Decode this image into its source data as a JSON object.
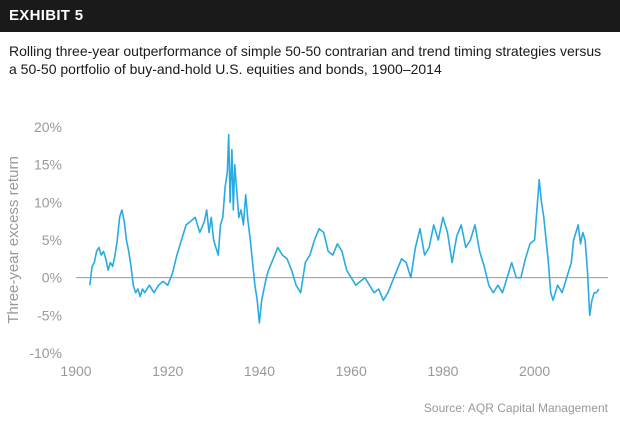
{
  "header": {
    "label": "EXHIBIT 5"
  },
  "subtitle": "Rolling three-year outperformance of simple 50-50 contrarian and trend timing strategies versus a 50-50 portfolio of buy-and-hold U.S. equities and bonds, 1900–2014",
  "source": "Source: AQR Capital Management",
  "colors": {
    "series": "#29abe2",
    "zero_line": "#999999",
    "tick_text": "#999999",
    "header_bg": "#1a1a1a"
  },
  "chart_data": {
    "type": "line",
    "title": "",
    "xlabel": "",
    "ylabel": "Three-year excess return",
    "xlim": [
      1900,
      2016
    ],
    "ylim": [
      -10,
      20
    ],
    "x_ticks": [
      1900,
      1920,
      1940,
      1960,
      1980,
      2000
    ],
    "x_tick_labels": [
      "1900",
      "1920",
      "1940",
      "1960",
      "1980",
      "2000"
    ],
    "y_ticks": [
      20,
      15,
      10,
      5,
      0,
      -5,
      -10
    ],
    "y_tick_labels": [
      "20%",
      "15%",
      "10%",
      "5%",
      "0%",
      "-5%",
      "-10%"
    ],
    "grid": false,
    "legend": "none",
    "series": [
      {
        "x": [
          1903,
          1903.5,
          1904,
          1904.5,
          1905,
          1905.5,
          1906,
          1906.5,
          1907,
          1907.5,
          1908,
          1908.5,
          1909,
          1909.5,
          1910,
          1910.5,
          1911,
          1911.5,
          1912,
          1912.5,
          1913,
          1913.5,
          1914,
          1914.5,
          1915,
          1916,
          1917,
          1918,
          1919,
          1920,
          1921,
          1922,
          1923,
          1924,
          1925,
          1926,
          1927,
          1928,
          1928.5,
          1929,
          1929.5,
          1930,
          1930.5,
          1931,
          1931.5,
          1932,
          1932.5,
          1933,
          1933.3,
          1933.6,
          1934,
          1934.3,
          1934.6,
          1935,
          1935.5,
          1936,
          1936.5,
          1937,
          1937.5,
          1938,
          1938.5,
          1939,
          1939.5,
          1940,
          1940.5,
          1941,
          1941.5,
          1942,
          1943,
          1944,
          1945,
          1946,
          1947,
          1948,
          1949,
          1950,
          1951,
          1952,
          1953,
          1954,
          1955,
          1956,
          1957,
          1958,
          1959,
          1960,
          1961,
          1962,
          1963,
          1964,
          1965,
          1966,
          1967,
          1968,
          1969,
          1970,
          1971,
          1972,
          1973,
          1974,
          1975,
          1976,
          1977,
          1978,
          1979,
          1980,
          1981,
          1982,
          1983,
          1984,
          1985,
          1986,
          1987,
          1988,
          1989,
          1990,
          1991,
          1992,
          1993,
          1994,
          1995,
          1996,
          1997,
          1998,
          1999,
          2000,
          2000.5,
          2001,
          2001.5,
          2002,
          2002.5,
          2003,
          2003.5,
          2004,
          2005,
          2006,
          2007,
          2008,
          2008.5,
          2009,
          2009.5,
          2010,
          2010.5,
          2011,
          2011.5,
          2012,
          2012.5,
          2013,
          2013.5,
          2014
        ],
        "y": [
          -1,
          1.5,
          2,
          3.5,
          4,
          3,
          3.5,
          2.5,
          1,
          2,
          1.5,
          3,
          5,
          8,
          9,
          7.5,
          5,
          3.5,
          1.5,
          -1,
          -2,
          -1.5,
          -2.5,
          -1.5,
          -2,
          -1,
          -2,
          -1,
          -0.5,
          -1,
          0.5,
          3,
          5,
          7,
          7.5,
          8,
          6,
          7.5,
          9,
          6,
          8,
          5,
          4,
          3,
          7,
          8,
          12,
          14,
          19,
          10,
          17,
          9,
          15,
          12,
          8,
          9,
          7,
          11,
          7.5,
          5,
          2,
          -1,
          -3,
          -6,
          -3,
          -1.5,
          0,
          1,
          2.5,
          4,
          3,
          2.5,
          1,
          -1,
          -2,
          2,
          3,
          5,
          6.5,
          6,
          3.5,
          3,
          4.5,
          3.5,
          1,
          0,
          -1,
          -0.5,
          0,
          -1,
          -2,
          -1.5,
          -3,
          -2,
          -0.5,
          1,
          2.5,
          2,
          0,
          4,
          6.5,
          3,
          4,
          7,
          5,
          8,
          6,
          2,
          5.5,
          7,
          4,
          5,
          7,
          3.5,
          1.5,
          -1,
          -2,
          -1,
          -2,
          0,
          2,
          0,
          0,
          2.5,
          4.5,
          5,
          9,
          13,
          10,
          8,
          5,
          2,
          -2,
          -3,
          -1,
          -2,
          0,
          2,
          5,
          6,
          7,
          4.5,
          6,
          5,
          1,
          -5,
          -3,
          -2,
          -2,
          -1.5
        ]
      }
    ]
  }
}
